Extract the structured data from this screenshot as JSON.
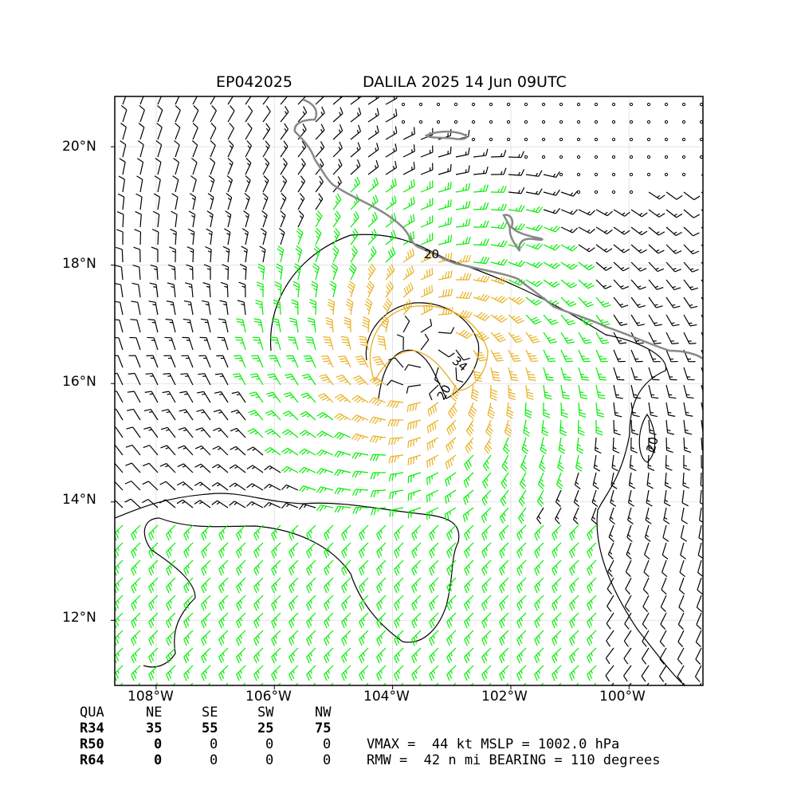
{
  "header": {
    "storm_id": "EP042025",
    "storm_title": "DALILA 2025 14 Jun 09UTC"
  },
  "axes": {
    "lat_labels": [
      "20°N",
      "18°N",
      "16°N",
      "14°N",
      "12°N"
    ],
    "lon_labels": [
      "108°W",
      "106°W",
      "104°W",
      "102°W",
      "100°W"
    ],
    "lat_range": [
      10.9,
      20.85
    ],
    "lon_range": [
      -108.7,
      -98.75
    ],
    "grid": true
  },
  "contours": {
    "labels": [
      "20",
      "20",
      "34",
      "20"
    ],
    "levels_kt": [
      20,
      34
    ]
  },
  "wind_radii_table": {
    "headers": [
      "QUA",
      "NE",
      "SE",
      "SW",
      "NW"
    ],
    "rows": [
      {
        "label": "R34",
        "values": [
          "35",
          "55",
          "25",
          "75"
        ]
      },
      {
        "label": "R50",
        "values": [
          "0",
          "0",
          "0",
          "0"
        ]
      },
      {
        "label": "R64",
        "values": [
          "0",
          "0",
          "0",
          "0"
        ]
      }
    ]
  },
  "summary": {
    "line1": "VMAX =  44 kt MSLP = 1002.0 hPa",
    "line2": "RMW =  42 n mi BEARING = 110 degrees"
  },
  "colors": {
    "barb_default": "#000000",
    "barb_34kt": "#00ee00",
    "barb_50kt": "#e8b020",
    "coastline": "#888888",
    "contour": "#000000",
    "contour_34": "#e8b020"
  }
}
